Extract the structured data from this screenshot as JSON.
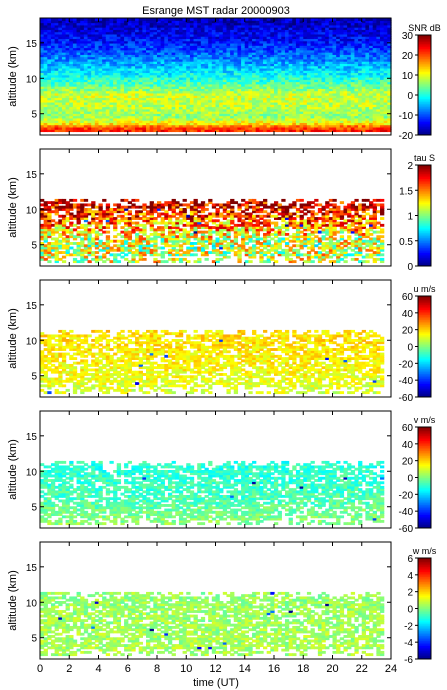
{
  "figure": {
    "title": "Esrange MST radar 20000903",
    "xlabel": "time (UT)",
    "x_ticks": [
      0,
      2,
      4,
      6,
      8,
      10,
      12,
      14,
      16,
      18,
      20,
      22,
      24
    ]
  },
  "chart_data": [
    {
      "type": "heatmap",
      "ylabel": "altitude (km)",
      "xlim": [
        0,
        24
      ],
      "ylim": [
        2,
        18.5
      ],
      "y_ticks": [
        5,
        10,
        15
      ],
      "grid": false,
      "colorbar": {
        "label": "SNR dB",
        "min": -20,
        "max": 30,
        "ticks": [
          -20,
          -10,
          0,
          10,
          20,
          30
        ]
      },
      "coverage": {
        "altitude_km": [
          2.5,
          18.3
        ],
        "time_UT": [
          0,
          24
        ]
      },
      "profile": [
        {
          "altitude_km": 2.5,
          "value": 22
        },
        {
          "altitude_km": 3,
          "value": 20
        },
        {
          "altitude_km": 3.5,
          "value": 12
        },
        {
          "altitude_km": 4.5,
          "value": 6
        },
        {
          "altitude_km": 6,
          "value": 8
        },
        {
          "altitude_km": 7.5,
          "value": 9
        },
        {
          "altitude_km": 9,
          "value": 3
        },
        {
          "altitude_km": 11,
          "value": -3
        },
        {
          "altitude_km": 13,
          "value": -8
        },
        {
          "altitude_km": 15,
          "value": -13
        },
        {
          "altitude_km": 18,
          "value": -17
        }
      ]
    },
    {
      "type": "heatmap",
      "ylabel": "altitude (km)",
      "xlim": [
        0,
        24
      ],
      "ylim": [
        2,
        18.5
      ],
      "y_ticks": [
        5,
        10,
        15
      ],
      "grid": false,
      "colorbar": {
        "label": "tau S",
        "min": 0,
        "max": 2,
        "ticks": [
          0,
          0.5,
          1,
          1.5,
          2
        ]
      },
      "coverage": {
        "altitude_km": [
          2.5,
          11.2
        ],
        "time_UT": [
          0,
          23.5
        ]
      },
      "profile": [
        {
          "altitude_km": 2.5,
          "value": 1.2
        },
        {
          "altitude_km": 5,
          "value": 1.1
        },
        {
          "altitude_km": 8,
          "value": 1.5
        },
        {
          "altitude_km": 10.5,
          "value": 1.9
        }
      ]
    },
    {
      "type": "heatmap",
      "ylabel": "altitude (km)",
      "xlim": [
        0,
        24
      ],
      "ylim": [
        2,
        18.5
      ],
      "y_ticks": [
        5,
        10,
        15
      ],
      "grid": false,
      "colorbar": {
        "label": "u m/s",
        "min": -60,
        "max": 60,
        "ticks": [
          -60,
          -40,
          -20,
          0,
          20,
          40,
          60
        ]
      },
      "coverage": {
        "altitude_km": [
          2.5,
          11.2
        ],
        "time_UT": [
          0,
          23.5
        ]
      },
      "profile": [
        {
          "altitude_km": 2.5,
          "value": 10
        },
        {
          "altitude_km": 6,
          "value": 15
        },
        {
          "altitude_km": 10,
          "value": 18
        }
      ]
    },
    {
      "type": "heatmap",
      "ylabel": "altitude (km)",
      "xlim": [
        0,
        24
      ],
      "ylim": [
        2,
        18.5
      ],
      "y_ticks": [
        5,
        10,
        15
      ],
      "grid": false,
      "colorbar": {
        "label": "v m/s",
        "min": -60,
        "max": 60,
        "ticks": [
          -60,
          -40,
          -20,
          0,
          20,
          40,
          60
        ]
      },
      "coverage": {
        "altitude_km": [
          2.5,
          11.2
        ],
        "time_UT": [
          0,
          23.5
        ]
      },
      "profile": [
        {
          "altitude_km": 2.5,
          "value": 2
        },
        {
          "altitude_km": 6,
          "value": -6
        },
        {
          "altitude_km": 10,
          "value": -10
        }
      ]
    },
    {
      "type": "heatmap",
      "ylabel": "altitude (km)",
      "xlim": [
        0,
        24
      ],
      "ylim": [
        2,
        18.5
      ],
      "y_ticks": [
        5,
        10,
        15
      ],
      "grid": false,
      "colorbar": {
        "label": "w m/s",
        "min": -6,
        "max": 6,
        "ticks": [
          -6,
          -4,
          -2,
          0,
          2,
          4,
          6
        ]
      },
      "coverage": {
        "altitude_km": [
          2.5,
          11.2
        ],
        "time_UT": [
          0,
          23.5
        ]
      },
      "profile": [
        {
          "altitude_km": 2.5,
          "value": 0.5
        },
        {
          "altitude_km": 10,
          "value": 0.3
        }
      ]
    }
  ]
}
